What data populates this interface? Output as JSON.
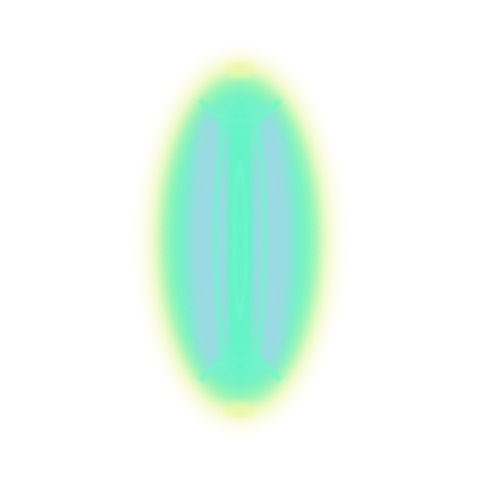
{
  "image": {
    "subject": "glowing-ellipse",
    "colors": {
      "background": "#ffffff",
      "outer_glow": "#f0f8a8",
      "ring": "#8ef5b6",
      "edge_band": "#6ff2c8",
      "inner_band": "#a2d6e8",
      "core": "#62f4c6",
      "filament": "#6ff6cc"
    }
  }
}
